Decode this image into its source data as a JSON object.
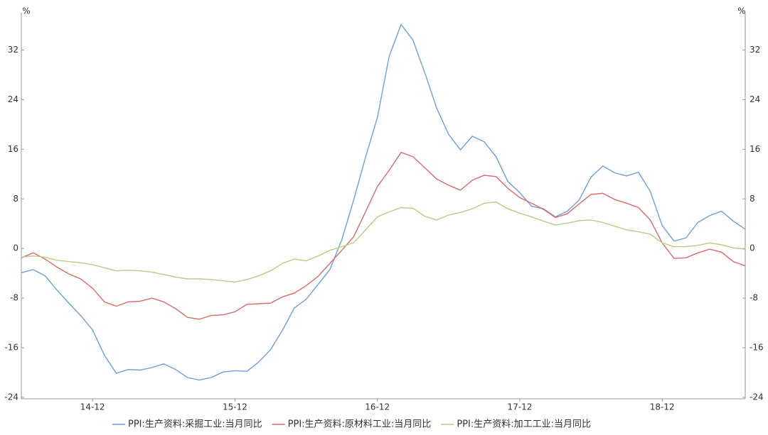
{
  "chart_data": {
    "type": "line",
    "y_label": "%",
    "y2_label": "%",
    "categories": [
      null,
      null,
      null,
      null,
      null,
      null,
      "14-12",
      null,
      null,
      null,
      null,
      null,
      null,
      null,
      null,
      null,
      null,
      null,
      "15-12",
      null,
      null,
      null,
      null,
      null,
      null,
      null,
      null,
      null,
      null,
      null,
      "16-12",
      null,
      null,
      null,
      null,
      null,
      null,
      null,
      null,
      null,
      null,
      null,
      "17-12",
      null,
      null,
      null,
      null,
      null,
      null,
      null,
      null,
      null,
      null,
      null,
      "18-12",
      null,
      null,
      null,
      null,
      null,
      null,
      null
    ],
    "series": [
      {
        "name": "PPI:生产资料:采掘工业:当月同比",
        "color": "#6f9fd6",
        "values": [
          -3.9,
          -3.4,
          -4.4,
          -6.7,
          -8.8,
          -10.8,
          -13.1,
          -17.2,
          -20.1,
          -19.5,
          -19.6,
          -19.2,
          -18.6,
          -19.5,
          -20.8,
          -21.2,
          -20.8,
          -19.9,
          -19.7,
          -19.8,
          -18.3,
          -16.3,
          -13.2,
          -9.6,
          -8.2,
          -5.8,
          -3.4,
          1.4,
          7.8,
          14.7,
          21.1,
          31.0,
          36.1,
          33.6,
          28.3,
          22.6,
          18.4,
          15.9,
          18.1,
          17.2,
          14.8,
          10.8,
          9.0,
          6.8,
          6.4,
          5.1,
          6.0,
          7.8,
          11.5,
          13.3,
          12.2,
          11.7,
          12.3,
          9.2,
          3.7,
          1.2,
          1.7,
          4.2,
          5.3,
          6.0,
          4.4,
          3.1
        ]
      },
      {
        "name": "PPI:生产资料:原材料工业:当月同比",
        "color": "#d66b6b",
        "values": [
          -1.5,
          -0.7,
          -1.7,
          -3.0,
          -4.1,
          -4.9,
          -6.4,
          -8.6,
          -9.3,
          -8.6,
          -8.5,
          -8.0,
          -8.6,
          -9.7,
          -11.1,
          -11.4,
          -10.8,
          -10.7,
          -10.2,
          -9.0,
          -8.9,
          -8.8,
          -7.8,
          -7.2,
          -6.0,
          -4.5,
          -2.4,
          -0.3,
          1.9,
          5.9,
          10.0,
          12.6,
          15.5,
          14.8,
          13.0,
          11.2,
          10.2,
          9.4,
          11.0,
          11.8,
          11.6,
          9.7,
          8.2,
          7.3,
          6.3,
          5.0,
          5.6,
          7.2,
          8.7,
          8.9,
          7.9,
          7.3,
          6.6,
          4.6,
          0.9,
          -1.6,
          -1.5,
          -0.7,
          -0.1,
          -0.6,
          -2.1,
          -2.8
        ]
      },
      {
        "name": "PPI:生产资料:加工工业:当月同比",
        "color": "#b9cc84",
        "values": [
          -1.4,
          -1.2,
          -1.4,
          -1.9,
          -2.1,
          -2.3,
          -2.6,
          -3.1,
          -3.6,
          -3.5,
          -3.6,
          -3.8,
          -4.2,
          -4.6,
          -4.9,
          -4.9,
          -5.0,
          -5.2,
          -5.4,
          -5.0,
          -4.4,
          -3.6,
          -2.4,
          -1.7,
          -2.0,
          -1.2,
          -0.3,
          0.3,
          0.9,
          3.0,
          5.1,
          5.9,
          6.6,
          6.5,
          5.2,
          4.6,
          5.4,
          5.8,
          6.4,
          7.3,
          7.5,
          6.4,
          5.7,
          5.1,
          4.4,
          3.8,
          4.1,
          4.5,
          4.6,
          4.2,
          3.6,
          3.0,
          2.7,
          2.3,
          0.9,
          0.3,
          0.3,
          0.5,
          0.9,
          0.6,
          0.1,
          -0.1
        ]
      }
    ],
    "ylim": [
      -24,
      38
    ],
    "yticks": [
      -24,
      -16,
      -8,
      0,
      8,
      16,
      24,
      32
    ],
    "y2lim": [
      -24,
      38
    ],
    "y2ticks": [
      -24,
      -16,
      -8,
      0,
      8,
      16,
      24,
      32
    ],
    "legend": "bottom"
  }
}
